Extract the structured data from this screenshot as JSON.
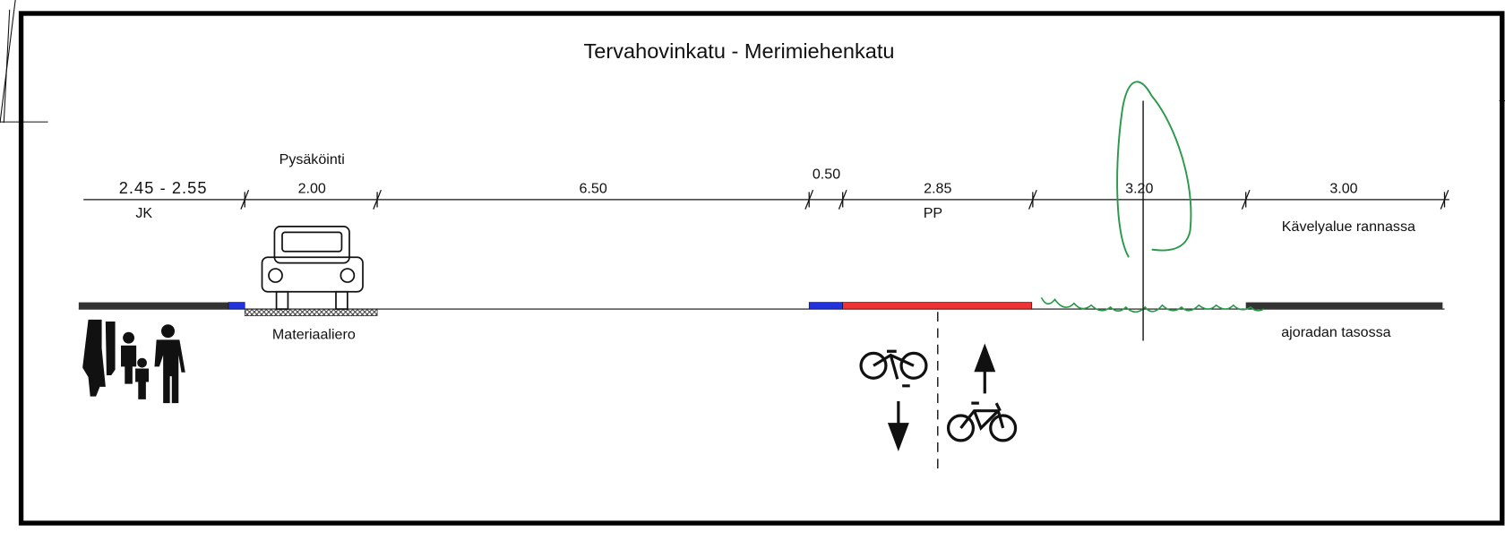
{
  "title": "Tervahovinkatu - Merimiehenkatu",
  "segments": [
    {
      "width": "2.45 - 2.55",
      "label": "JK"
    },
    {
      "width": "2.00",
      "label": "Pysäköinti"
    },
    {
      "width": "6.50"
    },
    {
      "width": "0.50"
    },
    {
      "width": "2.85",
      "label": "PP"
    },
    {
      "width": "3.20"
    },
    {
      "width": "3.00",
      "label": "Kävelyalue rannassa"
    }
  ],
  "notes": [
    "Materiaaliero",
    "ajoradan tasossa"
  ]
}
